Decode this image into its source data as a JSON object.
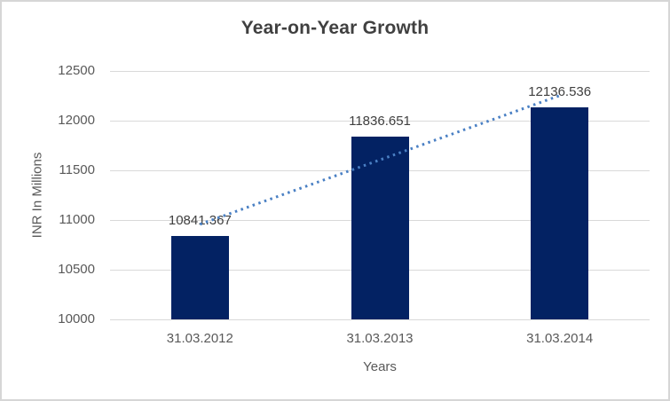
{
  "chart_data": {
    "type": "bar",
    "title": "Year-on-Year Growth",
    "xlabel": "Years",
    "ylabel": "INR In Millions",
    "categories": [
      "31.03.2012",
      "31.03.2013",
      "31.03.2014"
    ],
    "values": [
      10841.367,
      11836.651,
      12136.536
    ],
    "data_labels": [
      "10841.367",
      "11836.651",
      "12136.536"
    ],
    "yticks": [
      10000,
      10500,
      11000,
      11500,
      12000,
      12500
    ],
    "ylim": [
      10000,
      12500
    ],
    "grid": true,
    "legend": "none",
    "trendline": {
      "type": "linear",
      "style": "dotted"
    }
  },
  "colors": {
    "bar": "#032263",
    "trendline": "#4a80c4",
    "gridline": "#d9d9d9",
    "axis_text": "#595959",
    "title_text": "#404040",
    "data_label_text": "#404040",
    "border": "#d6d6d6",
    "background": "#ffffff"
  }
}
